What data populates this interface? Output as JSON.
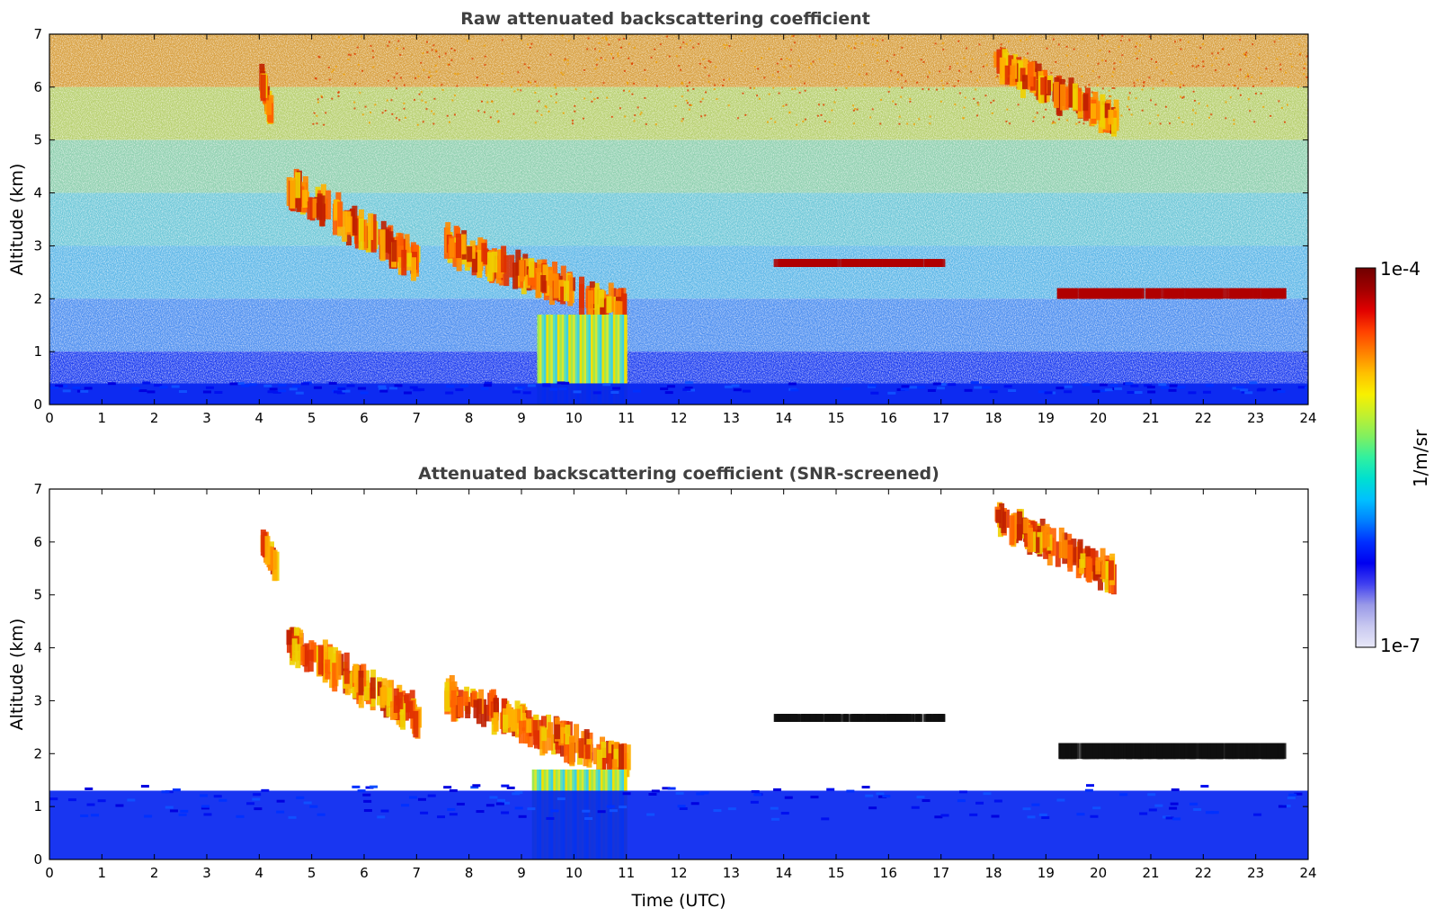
{
  "chart_data": [
    {
      "type": "heatmap",
      "title": "Raw attenuated backscattering coefficient",
      "xlabel": "",
      "ylabel": "Altitude (km)",
      "xlim": [
        0,
        24
      ],
      "ylim": [
        0,
        7
      ],
      "xticks": [
        "0",
        "1",
        "2",
        "3",
        "4",
        "5",
        "6",
        "7",
        "8",
        "9",
        "10",
        "11",
        "12",
        "13",
        "14",
        "15",
        "16",
        "17",
        "18",
        "19",
        "20",
        "21",
        "22",
        "23",
        "24"
      ],
      "yticks": [
        "0",
        "1",
        "2",
        "3",
        "4",
        "5",
        "6",
        "7"
      ],
      "features": [
        {
          "kind": "cloud",
          "x": [
            4.0,
            4.2
          ],
          "y": [
            5.4,
            6.2
          ]
        },
        {
          "kind": "cloud",
          "x": [
            4.5,
            7.0
          ],
          "y": [
            2.5,
            4.3
          ]
        },
        {
          "kind": "cloud",
          "x": [
            7.5,
            11.0
          ],
          "y": [
            1.6,
            3.2
          ]
        },
        {
          "kind": "cloud",
          "x": [
            13.8,
            17.0
          ],
          "y": [
            2.6,
            2.75
          ]
        },
        {
          "kind": "cloud",
          "x": [
            18.0,
            20.3
          ],
          "y": [
            5.2,
            6.6
          ]
        },
        {
          "kind": "cloud",
          "x": [
            19.2,
            23.5
          ],
          "y": [
            2.0,
            2.2
          ]
        },
        {
          "kind": "precipitation",
          "x": [
            9.3,
            11.0
          ],
          "y": [
            0,
            1.7
          ]
        },
        {
          "kind": "boundary_layer",
          "x": [
            0,
            24
          ],
          "y": [
            0,
            0.4
          ]
        }
      ],
      "colorbar": {
        "label": "1/m/sr",
        "min": "1e-7",
        "max": "1e-4"
      }
    },
    {
      "type": "heatmap",
      "title": "Attenuated backscattering coefficient (SNR-screened)",
      "xlabel": "Time (UTC)",
      "ylabel": "Altitude (km)",
      "xlim": [
        0,
        24
      ],
      "ylim": [
        0,
        7
      ],
      "xticks": [
        "0",
        "1",
        "2",
        "3",
        "4",
        "5",
        "6",
        "7",
        "8",
        "9",
        "10",
        "11",
        "12",
        "13",
        "14",
        "15",
        "16",
        "17",
        "18",
        "19",
        "20",
        "21",
        "22",
        "23",
        "24"
      ],
      "yticks": [
        "0",
        "1",
        "2",
        "3",
        "4",
        "5",
        "6",
        "7"
      ],
      "features": [
        {
          "kind": "cloud",
          "x": [
            4.0,
            4.3
          ],
          "y": [
            5.4,
            6.1
          ]
        },
        {
          "kind": "cloud",
          "x": [
            4.5,
            7.0
          ],
          "y": [
            2.5,
            4.3
          ]
        },
        {
          "kind": "cloud",
          "x": [
            7.5,
            11.0
          ],
          "y": [
            1.6,
            3.3
          ]
        },
        {
          "kind": "cloud",
          "x": [
            13.8,
            17.0
          ],
          "y": [
            2.6,
            2.75
          ]
        },
        {
          "kind": "cloud",
          "x": [
            18.0,
            20.3
          ],
          "y": [
            5.2,
            6.6
          ]
        },
        {
          "kind": "cloud",
          "x": [
            19.2,
            23.5
          ],
          "y": [
            1.9,
            2.2
          ]
        },
        {
          "kind": "precipitation",
          "x": [
            9.2,
            11.0
          ],
          "y": [
            0,
            1.7
          ]
        },
        {
          "kind": "boundary_layer",
          "x": [
            0,
            24
          ],
          "y": [
            0,
            1.3
          ]
        }
      ]
    }
  ],
  "colorbar": {
    "label": "1/m/sr",
    "max_label": "1e-4",
    "min_label": "1e-7",
    "stops": [
      "#e8e8f8",
      "#c8c8f0",
      "#9a9ae8",
      "#4040f0",
      "#0000f0",
      "#0030ff",
      "#0080ff",
      "#00c0ff",
      "#00e0d0",
      "#30f0a0",
      "#80f060",
      "#c0f030",
      "#f8f000",
      "#ffc000",
      "#ff8000",
      "#ff4000",
      "#e00000",
      "#a00000",
      "#700000"
    ]
  }
}
